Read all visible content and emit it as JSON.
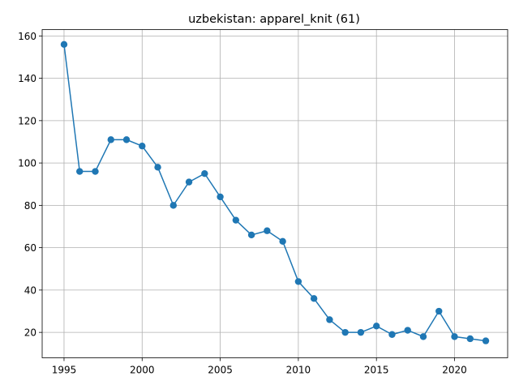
{
  "chart_data": {
    "type": "line",
    "title": "uzbekistan: apparel_knit (61)",
    "xlabel": "",
    "ylabel": "",
    "xlim": [
      1993.6,
      2023.4
    ],
    "ylim": [
      8.0,
      163.0
    ],
    "xticks": [
      1995,
      2000,
      2005,
      2010,
      2015,
      2020
    ],
    "yticks": [
      20,
      40,
      60,
      80,
      100,
      120,
      140,
      160
    ],
    "grid": true,
    "legend": "none",
    "series": [
      {
        "color": "#1f77b4",
        "marker": "circle",
        "x": [
          1995,
          1996,
          1997,
          1998,
          1999,
          2000,
          2001,
          2002,
          2003,
          2004,
          2005,
          2006,
          2007,
          2008,
          2009,
          2010,
          2011,
          2012,
          2013,
          2014,
          2015,
          2016,
          2017,
          2018,
          2019,
          2020,
          2021,
          2022
        ],
        "y": [
          156,
          96,
          96,
          111,
          111,
          108,
          98,
          80,
          91,
          95,
          84,
          73,
          66,
          68,
          63,
          44,
          36,
          26,
          20,
          20,
          23,
          19,
          21,
          18,
          30,
          18,
          17,
          16
        ]
      }
    ]
  }
}
